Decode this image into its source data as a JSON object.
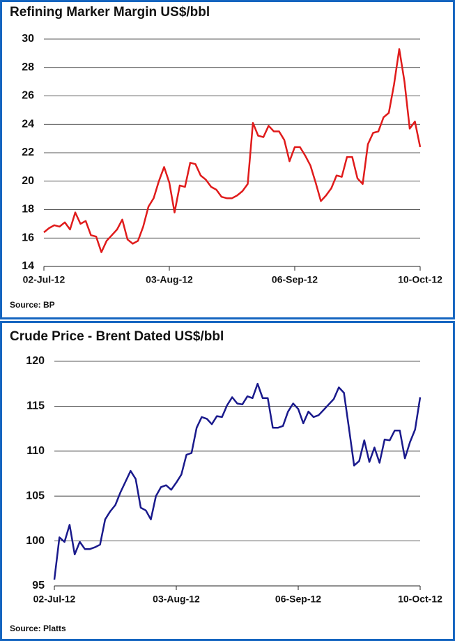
{
  "chart_data": [
    {
      "type": "line",
      "title": "Refining Marker Margin US$/bbl",
      "source": "Source: BP",
      "categories": [
        "02-Jul-12",
        null,
        null,
        null,
        null,
        null,
        null,
        null,
        null,
        null,
        null,
        null,
        null,
        null,
        null,
        null,
        null,
        null,
        null,
        null,
        null,
        null,
        null,
        null,
        "03-Aug-12",
        null,
        null,
        null,
        null,
        null,
        null,
        null,
        null,
        null,
        null,
        null,
        null,
        null,
        null,
        null,
        null,
        null,
        null,
        null,
        null,
        null,
        null,
        null,
        "06-Sep-12",
        null,
        null,
        null,
        null,
        null,
        null,
        null,
        null,
        null,
        null,
        null,
        null,
        null,
        null,
        null,
        null,
        null,
        null,
        null,
        null,
        null,
        null,
        null,
        "10-Oct-12"
      ],
      "values": [
        16.4,
        16.7,
        16.9,
        16.8,
        17.1,
        16.6,
        17.8,
        17.0,
        17.2,
        16.2,
        16.1,
        15.0,
        15.8,
        16.2,
        16.6,
        17.3,
        15.9,
        15.6,
        15.8,
        16.8,
        18.2,
        18.8,
        20.0,
        21.0,
        19.9,
        17.8,
        19.7,
        19.6,
        21.3,
        21.2,
        20.4,
        20.1,
        19.6,
        19.4,
        18.9,
        18.8,
        18.8,
        19.0,
        19.3,
        19.8,
        24.1,
        23.2,
        23.1,
        23.9,
        23.5,
        23.5,
        22.9,
        21.4,
        22.4,
        22.4,
        21.8,
        21.1,
        19.9,
        18.6,
        19.0,
        19.5,
        20.4,
        20.3,
        21.7,
        21.7,
        20.2,
        19.8,
        22.6,
        23.4,
        23.5,
        24.5,
        24.8,
        26.8,
        29.3,
        27.0,
        23.7,
        24.2,
        22.4
      ],
      "color": "#e01b1b",
      "ylim": [
        14,
        30
      ],
      "yticks": [
        14,
        16,
        18,
        20,
        22,
        24,
        26,
        28,
        30
      ],
      "grid": true
    },
    {
      "type": "line",
      "title": "Crude Price - Brent Dated US$/bbl",
      "source": "Source: Platts",
      "categories": [
        "02-Jul-12",
        null,
        null,
        null,
        null,
        null,
        null,
        null,
        null,
        null,
        null,
        null,
        null,
        null,
        null,
        null,
        null,
        null,
        null,
        null,
        null,
        null,
        null,
        null,
        "03-Aug-12",
        null,
        null,
        null,
        null,
        null,
        null,
        null,
        null,
        null,
        null,
        null,
        null,
        null,
        null,
        null,
        null,
        null,
        null,
        null,
        null,
        null,
        null,
        null,
        "06-Sep-12",
        null,
        null,
        null,
        null,
        null,
        null,
        null,
        null,
        null,
        null,
        null,
        null,
        null,
        null,
        null,
        null,
        null,
        null,
        null,
        null,
        null,
        null,
        null,
        "10-Oct-12"
      ],
      "values": [
        95.7,
        100.4,
        99.9,
        101.8,
        98.5,
        99.9,
        99.1,
        99.1,
        99.3,
        99.6,
        102.4,
        103.3,
        104.0,
        105.4,
        106.6,
        107.8,
        106.9,
        103.7,
        103.4,
        102.4,
        105.0,
        106.0,
        106.2,
        105.7,
        106.5,
        107.4,
        109.6,
        109.8,
        112.6,
        113.8,
        113.6,
        113.0,
        113.9,
        113.8,
        115.1,
        116.0,
        115.3,
        115.2,
        116.1,
        115.9,
        117.5,
        115.9,
        115.9,
        112.6,
        112.6,
        112.8,
        114.4,
        115.3,
        114.7,
        113.1,
        114.4,
        113.8,
        114.0,
        114.6,
        115.2,
        115.8,
        117.1,
        116.5,
        112.5,
        108.4,
        108.9,
        111.2,
        108.8,
        110.4,
        108.7,
        111.3,
        111.2,
        112.3,
        112.3,
        109.2,
        111.0,
        112.4,
        116.0
      ],
      "color": "#1a1a8c",
      "ylim": [
        95,
        120
      ],
      "yticks": [
        95,
        100,
        105,
        110,
        115,
        120
      ],
      "grid": true
    }
  ]
}
